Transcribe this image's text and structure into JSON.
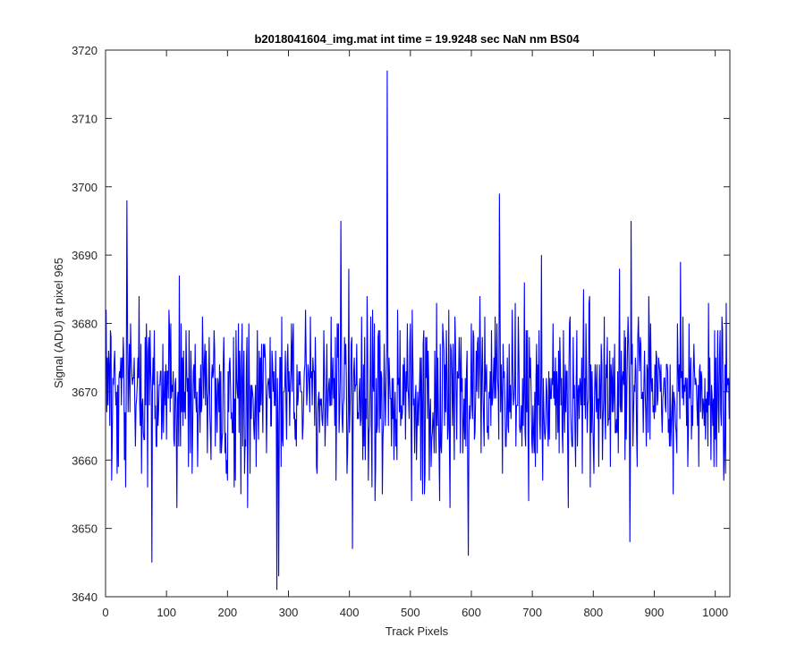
{
  "chart_data": {
    "type": "line",
    "title": "b2018041604_img.mat int time = 19.9248 sec  NaN nm BS04",
    "xlabel": "Track Pixels",
    "ylabel": "Signal (ADU) at pixel 965",
    "xlim": [
      0,
      1024
    ],
    "ylim": [
      3640,
      3720
    ],
    "xticks": [
      0,
      100,
      200,
      300,
      400,
      500,
      600,
      700,
      800,
      900,
      1000
    ],
    "yticks": [
      3640,
      3650,
      3660,
      3670,
      3680,
      3690,
      3700,
      3710,
      3720
    ],
    "grid": false,
    "series": [
      {
        "color": "#0000ff",
        "points": 1024,
        "baseline": 3670,
        "noise_sd": 6.5,
        "min_value": 3641,
        "max_value": 3717,
        "notable_points": [
          {
            "x": 35,
            "y": 3698
          },
          {
            "x": 76,
            "y": 3645
          },
          {
            "x": 281,
            "y": 3641
          },
          {
            "x": 284,
            "y": 3643
          },
          {
            "x": 386,
            "y": 3695
          },
          {
            "x": 405,
            "y": 3647
          },
          {
            "x": 462,
            "y": 3717
          },
          {
            "x": 595,
            "y": 3646
          },
          {
            "x": 646,
            "y": 3699
          },
          {
            "x": 860,
            "y": 3648
          },
          {
            "x": 862,
            "y": 3695
          }
        ]
      }
    ]
  }
}
